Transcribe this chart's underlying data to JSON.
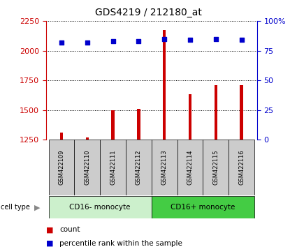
{
  "title": "GDS4219 / 212180_at",
  "samples": [
    "GSM422109",
    "GSM422110",
    "GSM422111",
    "GSM422112",
    "GSM422113",
    "GSM422114",
    "GSM422115",
    "GSM422116"
  ],
  "counts": [
    1310,
    1270,
    1500,
    1510,
    2175,
    1630,
    1710,
    1710
  ],
  "percentiles": [
    82,
    82,
    83,
    83,
    85,
    84,
    85,
    84
  ],
  "groups": [
    {
      "label": "CD16- monocyte",
      "start": 0,
      "end": 4,
      "color": "#ccf0cc"
    },
    {
      "label": "CD16+ monocyte",
      "start": 4,
      "end": 8,
      "color": "#44cc44"
    }
  ],
  "ylim_left": [
    1250,
    2250
  ],
  "ylim_right": [
    0,
    100
  ],
  "yticks_left": [
    1250,
    1500,
    1750,
    2000,
    2250
  ],
  "yticks_right": [
    0,
    25,
    50,
    75,
    100
  ],
  "bar_color": "#cc0000",
  "dot_color": "#0000cc",
  "left_axis_color": "#cc0000",
  "right_axis_color": "#0000cc",
  "grid_color": "#000000",
  "sample_box_color": "#cccccc",
  "legend_count_color": "#cc0000",
  "legend_pct_color": "#0000cc",
  "bar_width": 0.12
}
